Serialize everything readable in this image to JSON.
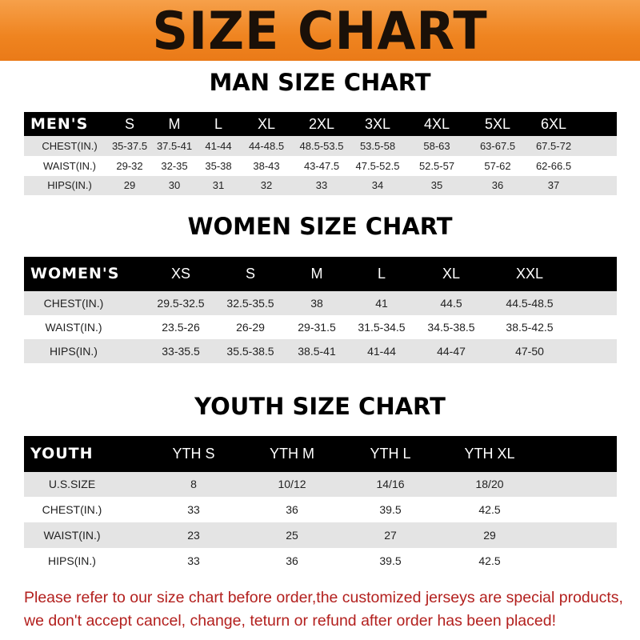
{
  "banner": {
    "title": "SIZE CHART",
    "color": "#ef8420"
  },
  "men": {
    "title": "MAN SIZE CHART",
    "header": [
      "MEN'S",
      "S",
      "M",
      "L",
      "XL",
      "2XL",
      "3XL",
      "4XL",
      "5XL",
      "6XL"
    ],
    "rows": [
      [
        "CHEST(IN.)",
        "35-37.5",
        "37.5-41",
        "41-44",
        "44-48.5",
        "48.5-53.5",
        "53.5-58",
        "58-63",
        "63-67.5",
        "67.5-72"
      ],
      [
        "WAIST(IN.)",
        "29-32",
        "32-35",
        "35-38",
        "38-43",
        "43-47.5",
        "47.5-52.5",
        "52.5-57",
        "57-62",
        "62-66.5"
      ],
      [
        "HIPS(IN.)",
        "29",
        "30",
        "31",
        "32",
        "33",
        "34",
        "35",
        "36",
        "37"
      ]
    ]
  },
  "women": {
    "title": "WOMEN SIZE CHART",
    "header": [
      "WOMEN'S",
      "XS",
      "S",
      "M",
      "L",
      "XL",
      "XXL"
    ],
    "rows": [
      [
        "CHEST(IN.)",
        "29.5-32.5",
        "32.5-35.5",
        "38",
        "41",
        "44.5",
        "44.5-48.5"
      ],
      [
        "WAIST(IN.)",
        "23.5-26",
        "26-29",
        "29-31.5",
        "31.5-34.5",
        "34.5-38.5",
        "38.5-42.5"
      ],
      [
        "HIPS(IN.)",
        "33-35.5",
        "35.5-38.5",
        "38.5-41",
        "41-44",
        "44-47",
        "47-50"
      ]
    ]
  },
  "youth": {
    "title": "YOUTH SIZE CHART",
    "header": [
      "YOUTH",
      "YTH S",
      "YTH M",
      "YTH L",
      "YTH XL"
    ],
    "rows": [
      [
        "U.S.SIZE",
        "8",
        "10/12",
        "14/16",
        "18/20"
      ],
      [
        "CHEST(IN.)",
        "33",
        "36",
        "39.5",
        "42.5"
      ],
      [
        "WAIST(IN.)",
        "23",
        "25",
        "27",
        "29"
      ],
      [
        "HIPS(IN.)",
        "33",
        "36",
        "39.5",
        "42.5"
      ]
    ]
  },
  "note": {
    "line1": "Please refer to our size chart before order,the customized jerseys are special products,",
    "line2": "we don't accept cancel, change, teturn or refund after order has been placed!",
    "color": "#b3201e"
  }
}
